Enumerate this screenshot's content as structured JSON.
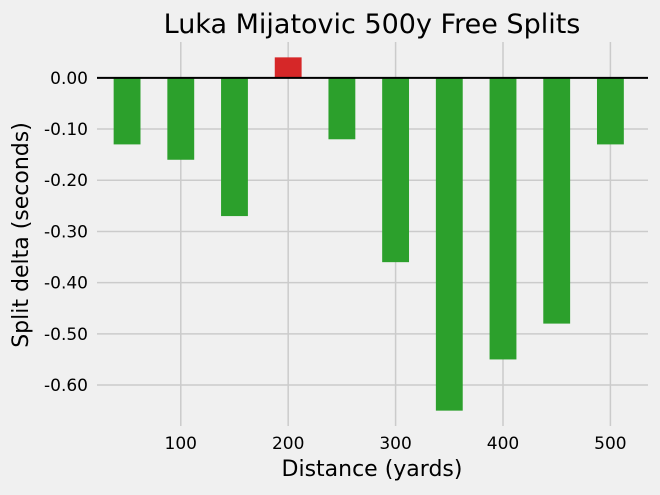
{
  "chart_data": {
    "type": "bar",
    "title": "Luka Mijatovic 500y Free Splits",
    "xlabel": "Distance (yards)",
    "ylabel": "Split delta (seconds)",
    "x": [
      50,
      100,
      150,
      200,
      250,
      300,
      350,
      400,
      450,
      500
    ],
    "values": [
      -0.13,
      -0.16,
      -0.27,
      0.04,
      -0.12,
      -0.36,
      -0.65,
      -0.55,
      -0.48,
      -0.13
    ],
    "xlim": [
      22,
      535
    ],
    "ylim": [
      -0.68,
      0.07
    ],
    "x_ticks": [
      100,
      200,
      300,
      400,
      500
    ],
    "x_tick_labels": [
      "100",
      "200",
      "300",
      "400",
      "500"
    ],
    "y_ticks": [
      0.0,
      -0.1,
      -0.2,
      -0.3,
      -0.4,
      -0.5,
      -0.6
    ],
    "y_tick_labels": [
      "0.00",
      "-0.10",
      "-0.20",
      "-0.30",
      "-0.40",
      "-0.50",
      "-0.60"
    ],
    "bar_width": 25,
    "grid": true,
    "colors": {
      "negative": "#2ca02c",
      "positive": "#d62728",
      "zero_line": "#000000",
      "grid": "#cbcbcb",
      "background": "#f0f0f0"
    }
  }
}
